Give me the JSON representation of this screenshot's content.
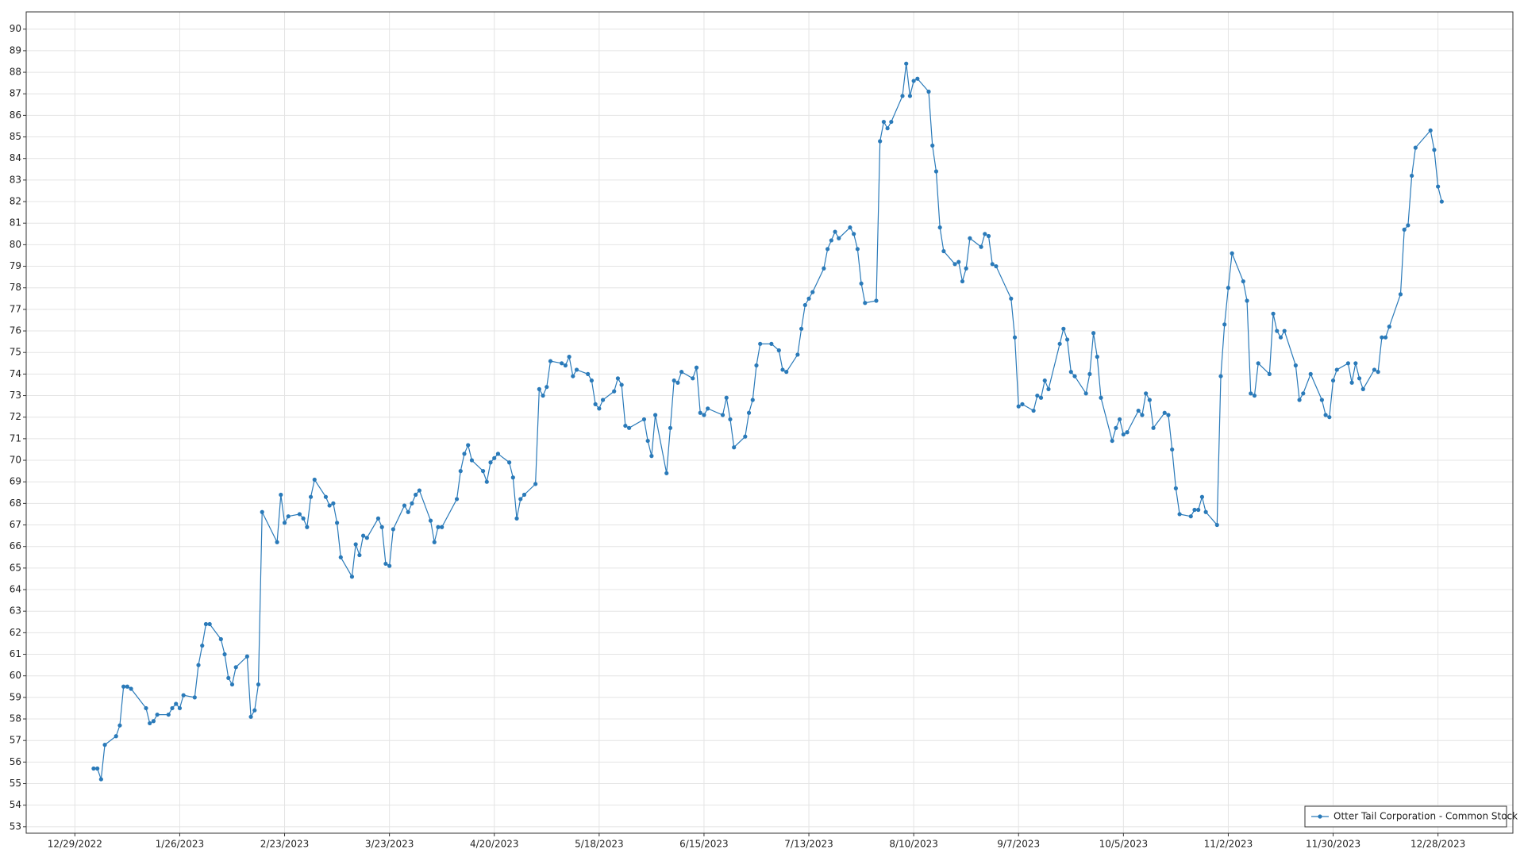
{
  "chart_data": {
    "type": "line",
    "x": [
      "2023-01-03",
      "2023-01-04",
      "2023-01-05",
      "2023-01-06",
      "2023-01-09",
      "2023-01-10",
      "2023-01-11",
      "2023-01-12",
      "2023-01-13",
      "2023-01-17",
      "2023-01-18",
      "2023-01-19",
      "2023-01-20",
      "2023-01-23",
      "2023-01-24",
      "2023-01-25",
      "2023-01-26",
      "2023-01-27",
      "2023-01-30",
      "2023-01-31",
      "2023-02-01",
      "2023-02-02",
      "2023-02-03",
      "2023-02-06",
      "2023-02-07",
      "2023-02-08",
      "2023-02-09",
      "2023-02-10",
      "2023-02-13",
      "2023-02-14",
      "2023-02-15",
      "2023-02-16",
      "2023-02-17",
      "2023-02-21",
      "2023-02-22",
      "2023-02-23",
      "2023-02-24",
      "2023-02-27",
      "2023-02-28",
      "2023-03-01",
      "2023-03-02",
      "2023-03-03",
      "2023-03-06",
      "2023-03-07",
      "2023-03-08",
      "2023-03-09",
      "2023-03-10",
      "2023-03-13",
      "2023-03-14",
      "2023-03-15",
      "2023-03-16",
      "2023-03-17",
      "2023-03-20",
      "2023-03-21",
      "2023-03-22",
      "2023-03-23",
      "2023-03-24",
      "2023-03-27",
      "2023-03-28",
      "2023-03-29",
      "2023-03-30",
      "2023-03-31",
      "2023-04-03",
      "2023-04-04",
      "2023-04-05",
      "2023-04-06",
      "2023-04-10",
      "2023-04-11",
      "2023-04-12",
      "2023-04-13",
      "2023-04-14",
      "2023-04-17",
      "2023-04-18",
      "2023-04-19",
      "2023-04-20",
      "2023-04-21",
      "2023-04-24",
      "2023-04-25",
      "2023-04-26",
      "2023-04-27",
      "2023-04-28",
      "2023-05-01",
      "2023-05-02",
      "2023-05-03",
      "2023-05-04",
      "2023-05-05",
      "2023-05-08",
      "2023-05-09",
      "2023-05-10",
      "2023-05-11",
      "2023-05-12",
      "2023-05-15",
      "2023-05-16",
      "2023-05-17",
      "2023-05-18",
      "2023-05-19",
      "2023-05-22",
      "2023-05-23",
      "2023-05-24",
      "2023-05-25",
      "2023-05-26",
      "2023-05-30",
      "2023-05-31",
      "2023-06-01",
      "2023-06-02",
      "2023-06-05",
      "2023-06-06",
      "2023-06-07",
      "2023-06-08",
      "2023-06-09",
      "2023-06-12",
      "2023-06-13",
      "2023-06-14",
      "2023-06-15",
      "2023-06-16",
      "2023-06-20",
      "2023-06-21",
      "2023-06-22",
      "2023-06-23",
      "2023-06-26",
      "2023-06-27",
      "2023-06-28",
      "2023-06-29",
      "2023-06-30",
      "2023-07-03",
      "2023-07-05",
      "2023-07-06",
      "2023-07-07",
      "2023-07-10",
      "2023-07-11",
      "2023-07-12",
      "2023-07-13",
      "2023-07-14",
      "2023-07-17",
      "2023-07-18",
      "2023-07-19",
      "2023-07-20",
      "2023-07-21",
      "2023-07-24",
      "2023-07-25",
      "2023-07-26",
      "2023-07-27",
      "2023-07-28",
      "2023-07-31",
      "2023-08-01",
      "2023-08-02",
      "2023-08-03",
      "2023-08-04",
      "2023-08-07",
      "2023-08-08",
      "2023-08-09",
      "2023-08-10",
      "2023-08-11",
      "2023-08-14",
      "2023-08-15",
      "2023-08-16",
      "2023-08-17",
      "2023-08-18",
      "2023-08-21",
      "2023-08-22",
      "2023-08-23",
      "2023-08-24",
      "2023-08-25",
      "2023-08-28",
      "2023-08-29",
      "2023-08-30",
      "2023-08-31",
      "2023-09-01",
      "2023-09-05",
      "2023-09-06",
      "2023-09-07",
      "2023-09-08",
      "2023-09-11",
      "2023-09-12",
      "2023-09-13",
      "2023-09-14",
      "2023-09-15",
      "2023-09-18",
      "2023-09-19",
      "2023-09-20",
      "2023-09-21",
      "2023-09-22",
      "2023-09-25",
      "2023-09-26",
      "2023-09-27",
      "2023-09-28",
      "2023-09-29",
      "2023-10-02",
      "2023-10-03",
      "2023-10-04",
      "2023-10-05",
      "2023-10-06",
      "2023-10-09",
      "2023-10-10",
      "2023-10-11",
      "2023-10-12",
      "2023-10-13",
      "2023-10-16",
      "2023-10-17",
      "2023-10-18",
      "2023-10-19",
      "2023-10-20",
      "2023-10-23",
      "2023-10-24",
      "2023-10-25",
      "2023-10-26",
      "2023-10-27",
      "2023-10-30",
      "2023-10-31",
      "2023-11-01",
      "2023-11-02",
      "2023-11-03",
      "2023-11-06",
      "2023-11-07",
      "2023-11-08",
      "2023-11-09",
      "2023-11-10",
      "2023-11-13",
      "2023-11-14",
      "2023-11-15",
      "2023-11-16",
      "2023-11-17",
      "2023-11-20",
      "2023-11-21",
      "2023-11-22",
      "2023-11-24",
      "2023-11-27",
      "2023-11-28",
      "2023-11-29",
      "2023-11-30",
      "2023-12-01",
      "2023-12-04",
      "2023-12-05",
      "2023-12-06",
      "2023-12-07",
      "2023-12-08",
      "2023-12-11",
      "2023-12-12",
      "2023-12-13",
      "2023-12-14",
      "2023-12-15",
      "2023-12-18",
      "2023-12-19",
      "2023-12-20",
      "2023-12-21",
      "2023-12-22",
      "2023-12-26",
      "2023-12-27",
      "2023-12-28",
      "2023-12-29"
    ],
    "series": [
      {
        "name": "Otter Tail Corporation - Common Stock",
        "color": "#2a7ab9",
        "values": [
          55.7,
          55.7,
          55.2,
          56.8,
          57.2,
          57.7,
          59.5,
          59.5,
          59.4,
          58.5,
          57.8,
          57.9,
          58.2,
          58.2,
          58.5,
          58.7,
          58.5,
          59.1,
          59.0,
          60.5,
          61.4,
          62.4,
          62.4,
          61.7,
          61.0,
          59.9,
          59.6,
          60.4,
          60.9,
          58.1,
          58.4,
          59.6,
          67.6,
          66.2,
          68.4,
          67.1,
          67.4,
          67.5,
          67.3,
          66.9,
          68.3,
          69.1,
          68.3,
          67.9,
          68.0,
          67.1,
          65.5,
          64.6,
          66.1,
          65.6,
          66.5,
          66.4,
          67.3,
          66.9,
          65.2,
          65.1,
          66.8,
          67.9,
          67.6,
          68.0,
          68.4,
          68.6,
          67.2,
          66.2,
          66.9,
          66.9,
          68.2,
          69.5,
          70.3,
          70.7,
          70.0,
          69.5,
          69.0,
          69.9,
          70.1,
          70.3,
          69.9,
          69.2,
          67.3,
          68.2,
          68.4,
          68.9,
          73.3,
          73.0,
          73.4,
          74.6,
          74.5,
          74.4,
          74.8,
          73.9,
          74.2,
          74.0,
          73.7,
          72.6,
          72.4,
          72.8,
          73.2,
          73.8,
          73.5,
          71.6,
          71.5,
          71.9,
          70.9,
          70.2,
          72.1,
          69.4,
          71.5,
          73.7,
          73.6,
          74.1,
          73.8,
          74.3,
          72.2,
          72.1,
          72.4,
          72.1,
          72.9,
          71.9,
          70.6,
          71.1,
          72.2,
          72.8,
          74.4,
          75.4,
          75.4,
          75.1,
          74.2,
          74.1,
          74.9,
          76.1,
          77.2,
          77.5,
          77.8,
          78.9,
          79.8,
          80.2,
          80.6,
          80.3,
          80.8,
          80.5,
          79.8,
          78.2,
          77.3,
          77.4,
          84.8,
          85.7,
          85.4,
          85.7,
          86.9,
          88.4,
          86.9,
          87.6,
          87.7,
          87.1,
          84.6,
          83.4,
          80.8,
          79.7,
          79.1,
          79.2,
          78.3,
          78.9,
          80.3,
          79.9,
          80.5,
          80.4,
          79.1,
          79.0,
          77.5,
          75.7,
          72.5,
          72.6,
          72.3,
          73.0,
          72.9,
          73.7,
          73.3,
          75.4,
          76.1,
          75.6,
          74.1,
          73.9,
          73.1,
          74.0,
          75.9,
          74.8,
          72.9,
          70.9,
          71.5,
          71.9,
          71.2,
          71.3,
          72.3,
          72.1,
          73.1,
          72.8,
          71.5,
          72.2,
          72.1,
          70.5,
          68.7,
          67.5,
          67.4,
          67.7,
          67.7,
          68.3,
          67.6,
          67.0,
          73.9,
          76.3,
          78.0,
          79.6,
          78.3,
          77.4,
          73.1,
          73.0,
          74.5,
          74.0,
          76.8,
          76.0,
          75.7,
          76.0,
          74.4,
          72.8,
          73.1,
          74.0,
          72.8,
          72.1,
          72.0,
          73.7,
          74.2,
          74.5,
          73.6,
          74.5,
          73.8,
          73.3,
          74.2,
          74.1,
          75.7,
          75.7,
          76.2,
          77.7,
          80.7,
          80.9,
          83.2,
          84.5,
          85.3,
          84.4,
          82.7,
          82.0
        ]
      }
    ],
    "xlim": [
      "2022-12-16",
      "2024-01-17"
    ],
    "xticks": [
      {
        "value": "2022-12-29",
        "label": "12/29/2022"
      },
      {
        "value": "2023-01-26",
        "label": "1/26/2023"
      },
      {
        "value": "2023-02-23",
        "label": "2/23/2023"
      },
      {
        "value": "2023-03-23",
        "label": "3/23/2023"
      },
      {
        "value": "2023-04-20",
        "label": "4/20/2023"
      },
      {
        "value": "2023-05-18",
        "label": "5/18/2023"
      },
      {
        "value": "2023-06-15",
        "label": "6/15/2023"
      },
      {
        "value": "2023-07-13",
        "label": "7/13/2023"
      },
      {
        "value": "2023-08-10",
        "label": "8/10/2023"
      },
      {
        "value": "2023-09-07",
        "label": "9/7/2023"
      },
      {
        "value": "2023-10-05",
        "label": "10/5/2023"
      },
      {
        "value": "2023-11-02",
        "label": "11/2/2023"
      },
      {
        "value": "2023-11-30",
        "label": "11/30/2023"
      },
      {
        "value": "2023-12-28",
        "label": "12/28/2023"
      }
    ],
    "ylim": [
      52.7,
      90.8
    ],
    "yticks": [
      53,
      54,
      55,
      56,
      57,
      58,
      59,
      60,
      61,
      62,
      63,
      64,
      65,
      66,
      67,
      68,
      69,
      70,
      71,
      72,
      73,
      74,
      75,
      76,
      77,
      78,
      79,
      80,
      81,
      82,
      83,
      84,
      85,
      86,
      87,
      88,
      89,
      90
    ],
    "grid": true,
    "markers": true,
    "legend": "lower right"
  }
}
